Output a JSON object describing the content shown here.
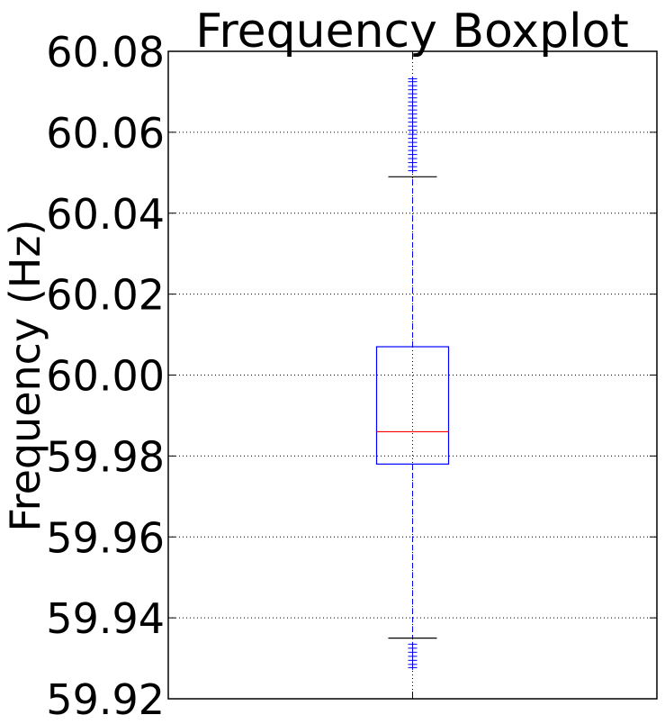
{
  "chart_data": {
    "type": "boxplot",
    "title": "Frequency Boxplot",
    "xlabel": "",
    "ylabel": "Frequency (Hz)",
    "ylim": [
      59.92,
      60.08
    ],
    "yticks": [
      59.92,
      59.94,
      59.96,
      59.98,
      60.0,
      60.02,
      60.04,
      60.06,
      60.08
    ],
    "ytick_labels": [
      "59.92",
      "59.94",
      "59.96",
      "59.98",
      "60.00",
      "60.02",
      "60.04",
      "60.06",
      "60.08"
    ],
    "grid": true,
    "box": {
      "whisker_low": 59.935,
      "q1": 59.978,
      "median": 59.986,
      "q3": 60.007,
      "whisker_high": 60.049,
      "fliers_high": [
        60.0505,
        60.0515,
        60.0525,
        60.0535,
        60.0545,
        60.0555,
        60.0565,
        60.0575,
        60.0585,
        60.0595,
        60.0605,
        60.0615,
        60.0625,
        60.0635,
        60.0645,
        60.0655,
        60.0665,
        60.0675,
        60.0685,
        60.0695,
        60.0705,
        60.0715,
        60.0725,
        60.0732
      ],
      "fliers_low": [
        59.9335,
        59.9325,
        59.9315,
        59.9305,
        59.9295,
        59.9285,
        59.9277
      ]
    },
    "colors": {
      "box": "#0000ff",
      "median": "#ff0000",
      "whisker": "#0000ff",
      "cap": "#000000",
      "flier": "#0000ff",
      "grid": "#000000"
    }
  }
}
